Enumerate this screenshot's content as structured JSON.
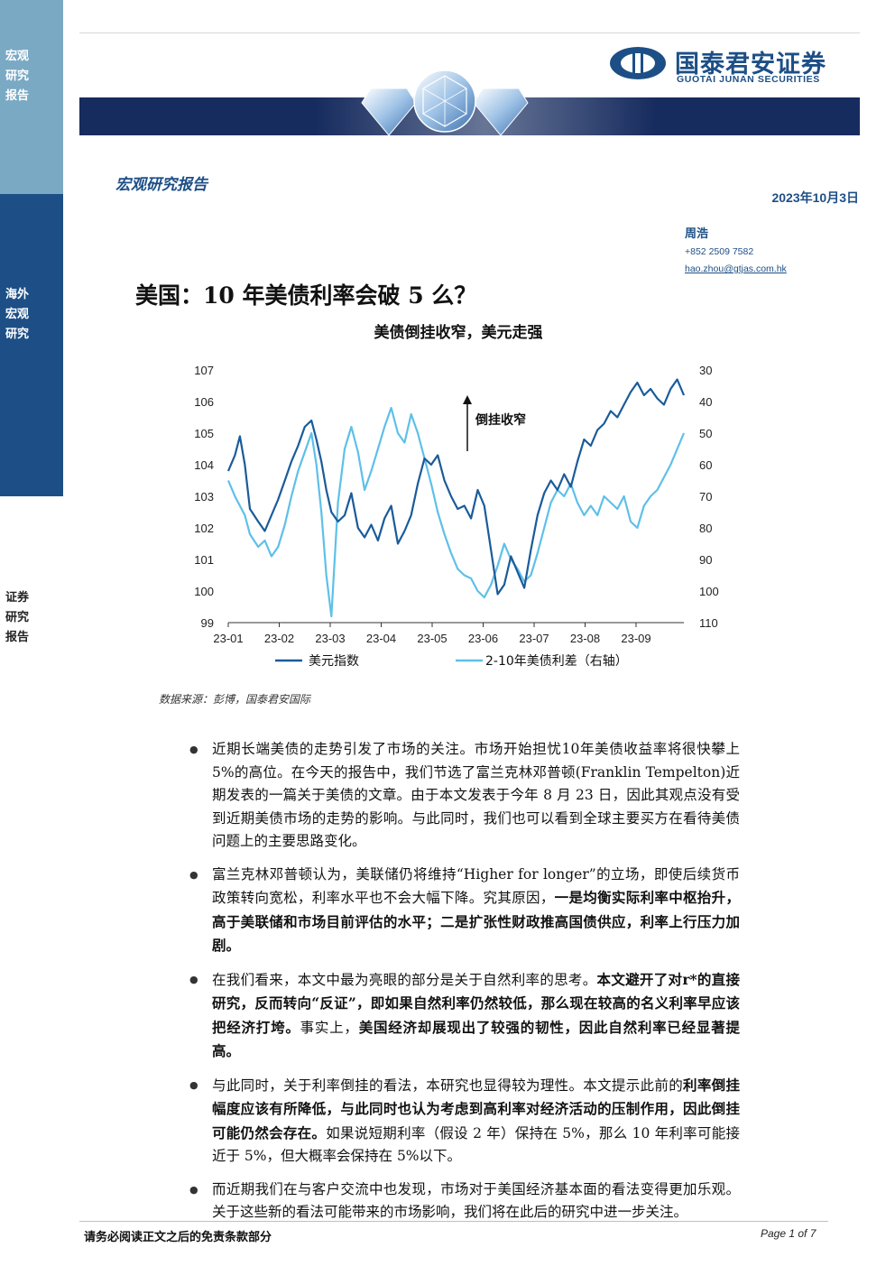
{
  "sidebar": {
    "section1": "宏观研究报告",
    "section2": "海外宏观研究",
    "section3": "证券研究报告"
  },
  "header": {
    "logo_cn": "国泰君安证券",
    "logo_en": "GUOTAI JUNAN SECURITIES",
    "brand_color": "#1d4f86"
  },
  "report": {
    "type": "宏观研究报告",
    "date": "2023年10月3日",
    "author": "周浩",
    "phone": "+852 2509 7582",
    "email": "hao.zhou@gtjas.com.hk",
    "title": "美国：10 年美债利率会破 5 么？"
  },
  "chart_data": {
    "type": "line",
    "title": "美债倒挂收窄，美元走强",
    "x_ticks": [
      "23-01",
      "23-02",
      "23-03",
      "23-04",
      "23-05",
      "23-06",
      "23-07",
      "23-08",
      "23-09"
    ],
    "ylim_left": [
      99,
      107
    ],
    "yticks_left": [
      "107",
      "106",
      "105",
      "104",
      "103",
      "102",
      "101",
      "100",
      "99"
    ],
    "ylim_right": [
      30,
      110
    ],
    "right_axis_inverted": true,
    "yticks_right": [
      "30",
      "40",
      "50",
      "60",
      "70",
      "80",
      "90",
      "100",
      "110"
    ],
    "annotation": "倒挂收窄",
    "series": [
      {
        "name": "美元指数",
        "color": "#1a5b9a",
        "axis": "left",
        "x": [
          0,
          4,
          7,
          10,
          13,
          18,
          22,
          26,
          30,
          34,
          38,
          42,
          46,
          50,
          53,
          56,
          59,
          62,
          66,
          70,
          74,
          78,
          82,
          86,
          90,
          94,
          98,
          102,
          106,
          110,
          114,
          118,
          122,
          126,
          130,
          134,
          138,
          142,
          146,
          150,
          154,
          158,
          162,
          166,
          170,
          174,
          178,
          182,
          186,
          190,
          194,
          198,
          202,
          206,
          210,
          214,
          218,
          222,
          226,
          230,
          234,
          238,
          242,
          246,
          250,
          254,
          258,
          262,
          266,
          270,
          274
        ],
        "values": [
          103.8,
          104.3,
          104.9,
          104.0,
          102.6,
          102.2,
          101.9,
          102.4,
          102.9,
          103.5,
          104.1,
          104.6,
          105.2,
          105.4,
          104.8,
          104.1,
          103.2,
          102.5,
          102.2,
          102.4,
          103.1,
          102.0,
          101.7,
          102.1,
          101.6,
          102.3,
          102.7,
          101.5,
          101.9,
          102.4,
          103.4,
          104.2,
          104.0,
          104.3,
          103.5,
          103.0,
          102.6,
          102.7,
          102.3,
          103.2,
          102.7,
          101.3,
          99.9,
          100.2,
          101.1,
          100.6,
          100.1,
          101.3,
          102.4,
          103.1,
          103.5,
          103.2,
          103.7,
          103.3,
          104.1,
          104.8,
          104.6,
          105.1,
          105.3,
          105.7,
          105.5,
          105.9,
          106.3,
          106.6,
          106.2,
          106.4,
          106.1,
          105.9,
          106.4,
          106.7,
          106.2
        ]
      },
      {
        "name": "2-10年美债利差（右轴）",
        "color": "#5ec0e8",
        "axis": "right",
        "x": [
          0,
          4,
          7,
          10,
          13,
          18,
          22,
          26,
          30,
          34,
          38,
          42,
          46,
          50,
          53,
          56,
          59,
          62,
          66,
          70,
          74,
          78,
          82,
          86,
          90,
          94,
          98,
          102,
          106,
          110,
          114,
          118,
          122,
          126,
          130,
          134,
          138,
          142,
          146,
          150,
          154,
          158,
          162,
          166,
          170,
          174,
          178,
          182,
          186,
          190,
          194,
          198,
          202,
          206,
          210,
          214,
          218,
          222,
          226,
          230,
          234,
          238,
          242,
          246,
          250,
          254,
          258,
          262,
          266,
          270,
          274
        ],
        "values": [
          65,
          70,
          73,
          76,
          82,
          86,
          84,
          89,
          86,
          79,
          70,
          62,
          56,
          50,
          60,
          75,
          95,
          108,
          72,
          55,
          48,
          56,
          68,
          62,
          55,
          48,
          42,
          50,
          53,
          44,
          50,
          58,
          66,
          75,
          82,
          88,
          93,
          95,
          96,
          100,
          102,
          98,
          92,
          85,
          90,
          93,
          97,
          95,
          88,
          80,
          72,
          68,
          70,
          66,
          72,
          76,
          73,
          76,
          70,
          72,
          74,
          70,
          78,
          80,
          73,
          70,
          68,
          64,
          60,
          55,
          50
        ]
      }
    ]
  },
  "source": "数据来源：彭博，国泰君安国际",
  "bullets": [
    {
      "parts": [
        {
          "t": "近期长端美债的走势引发了市场的关注。市场开始担忧10年美债收益率将很快攀上 5%的高位。在今天的报告中，我们节选了富兰克林邓普顿(Franklin Tempelton)近期发表的一篇关于美债的文章。由于本文发表于今年 8 月 23 日，因此其观点没有受到近期美债市场的走势的影响。与此同时，我们也可以看到全球主要买方在看待美债问题上的主要思路变化。",
          "b": false
        }
      ]
    },
    {
      "parts": [
        {
          "t": "富兰克林邓普顿认为，美联储仍将维持“Higher for longer”的立场，即使后续货币政策转向宽松，利率水平也不会大幅下降。究其原因，",
          "b": false
        },
        {
          "t": "一是均衡实际利率中枢抬升，高于美联储和市场目前评估的水平；二是扩张性财政推高国债供应，利率上行压力加剧。",
          "b": true
        }
      ]
    },
    {
      "parts": [
        {
          "t": "在我们看来，本文中最为亮眼的部分是关于自然利率的思考。",
          "b": false
        },
        {
          "t": "本文避开了对r*的直接研究，反而转向“反证”，即如果自然利率仍然较低，那么现在较高的名义利率早应该把经济打垮。",
          "b": true
        },
        {
          "t": "事实上，",
          "b": false
        },
        {
          "t": "美国经济却展现出了较强的韧性，因此自然利率已经显著提高。",
          "b": true
        }
      ]
    },
    {
      "parts": [
        {
          "t": "与此同时，关于利率倒挂的看法，本研究也显得较为理性。本文提示此前的",
          "b": false
        },
        {
          "t": "利率倒挂幅度应该有所降低，与此同时也认为考虑到高利率对经济活动的压制作用，因此倒挂可能仍然会存在。",
          "b": true
        },
        {
          "t": "如果说短期利率（假设 2 年）保持在 5%，那么 10 年利率可能接近于 5%，但大概率会保持在 5%以下。",
          "b": false
        }
      ]
    },
    {
      "parts": [
        {
          "t": "而近期我们在与客户交流中也发现，市场对于美国经济基本面的看法变得更加乐观。关于这些新的看法可能带来的市场影响，我们将在此后的研究中进一步关注。",
          "b": false
        }
      ]
    }
  ],
  "footer": {
    "disclaimer": "请务必阅读正文之后的免责条款部分",
    "page": "Page 1 of 7"
  }
}
